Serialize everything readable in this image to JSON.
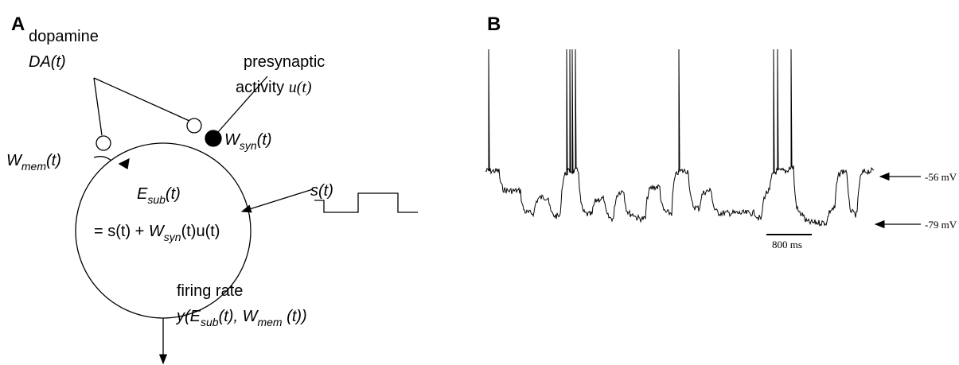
{
  "panel_a": {
    "label": "A",
    "dopamine": {
      "name": "dopamine",
      "base": "DA",
      "arg": "(t)"
    },
    "presynaptic": {
      "line1": "presynaptic",
      "line2": "activity",
      "signal": "u(t)"
    },
    "w_syn": {
      "base": "W",
      "sub": "syn",
      "arg": "(t)"
    },
    "w_mem": {
      "base": "W",
      "sub": "mem",
      "arg": "(t)"
    },
    "e_sub": {
      "base": "E",
      "sub": "sub",
      "arg": "(t)"
    },
    "equation": {
      "lhs": "= s(t) + ",
      "base": "W",
      "sub": "syn",
      "rest": "(t)u(t)"
    },
    "input": "s(t)",
    "output": {
      "line1": "firing rate",
      "open": "y(",
      "e_base": "E",
      "e_sub": "sub",
      "mid": "(t), ",
      "w_base": "W",
      "w_sub": "mem",
      "close": " (t))"
    }
  },
  "panel_b": {
    "label": "B",
    "upper_level": "-56 mV",
    "lower_level": "-79 mV",
    "scale_bar": "800 ms"
  }
}
